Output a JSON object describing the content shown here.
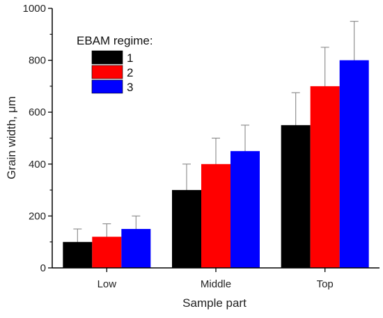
{
  "chart_data": {
    "type": "bar",
    "xlabel": "Sample part",
    "ylabel": "Grain width, μm",
    "categories": [
      "Low",
      "Middle",
      "Top"
    ],
    "ylim": [
      0,
      1000
    ],
    "yticks": [
      0,
      200,
      400,
      600,
      800,
      1000
    ],
    "legend": {
      "title": "EBAM regime:",
      "placement": "top-left"
    },
    "series": [
      {
        "name": "1",
        "color": "#000000",
        "values": [
          100,
          300,
          550
        ],
        "errors": [
          50,
          100,
          125
        ]
      },
      {
        "name": "2",
        "color": "#ff0000",
        "values": [
          120,
          400,
          700
        ],
        "errors": [
          50,
          100,
          150
        ]
      },
      {
        "name": "3",
        "color": "#0000ff",
        "values": [
          150,
          450,
          800
        ],
        "errors": [
          50,
          100,
          150
        ]
      }
    ],
    "grid": false
  }
}
